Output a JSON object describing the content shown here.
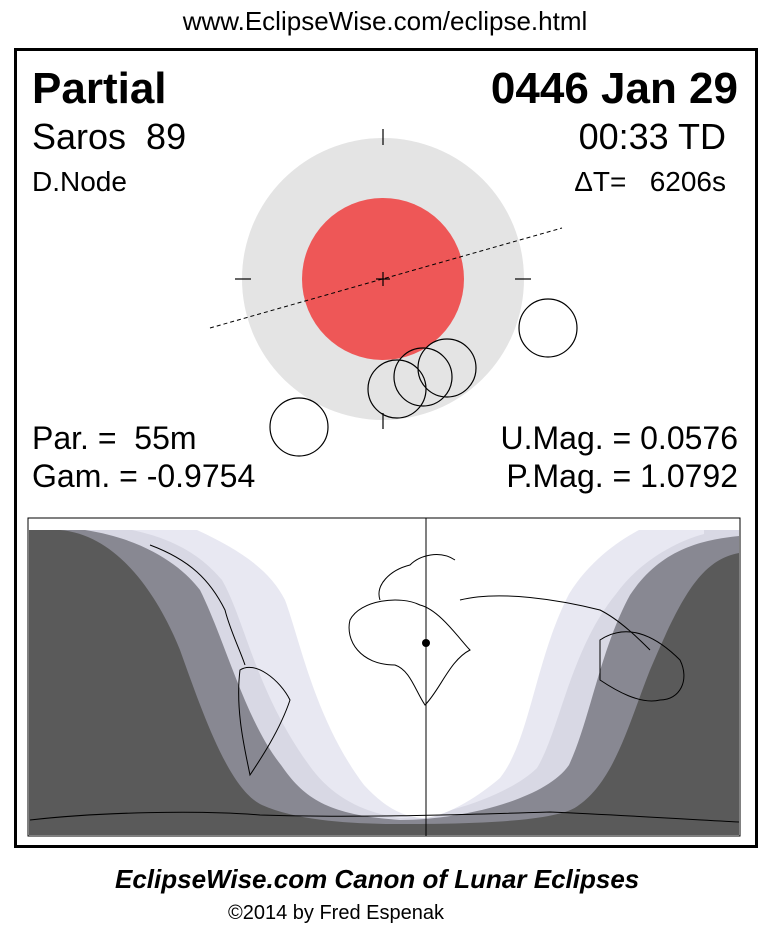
{
  "header_url": "www.EclipseWise.com/eclipse.html",
  "eclipse": {
    "type": "Partial",
    "date": "0446 Jan 29",
    "saros": "Saros  89",
    "time": "00:33 TD",
    "node": "D.Node",
    "delta_t": "ΔT=   6206s",
    "par": "Par. =  55m",
    "gam": "Gam. = -0.9754",
    "umag": "U.Mag. = 0.0576",
    "pmag": "P.Mag. = 1.0792"
  },
  "colors": {
    "umbra": "#ee5757",
    "penumbra": "#e4e4e4",
    "map_night": "#5a5a5a",
    "map_band1": "#888892",
    "map_band2": "#d8d8e4",
    "map_band3": "#e8e8f2"
  },
  "footer": {
    "title": "EclipseWise.com Canon of Lunar Eclipses",
    "copyright": "©2014 by Fred Espenak"
  }
}
